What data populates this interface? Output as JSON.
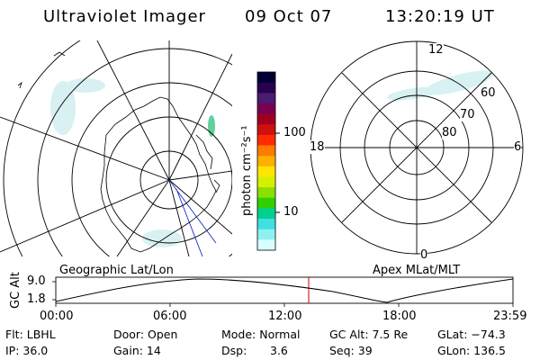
{
  "header": {
    "title": "Ultraviolet Imager",
    "date": "09 Oct 07",
    "time": "13:20:19 UT"
  },
  "colorbar": {
    "label": "photon cm⁻²s⁻¹",
    "ticks": [
      "100",
      "10"
    ],
    "colors": [
      "#000033",
      "#2a0050",
      "#4a1c72",
      "#7a0050",
      "#a00020",
      "#d01010",
      "#ff2a00",
      "#ff7a00",
      "#ffb000",
      "#ffe600",
      "#d4f000",
      "#8ae000",
      "#30d000",
      "#00d090",
      "#40e0e0",
      "#90f0f0",
      "#d8ffff"
    ]
  },
  "left_map": {
    "caption": "Geographic Lat/Lon"
  },
  "right_map": {
    "caption": "Apex MLat/MLT",
    "mlt_labels": [
      "12",
      "18",
      "6",
      "0"
    ],
    "mlat_labels": [
      "60",
      "70",
      "80"
    ]
  },
  "gc_plot": {
    "ylabel": "GC Alt",
    "ytick_top": "9.0",
    "ytick_bottom": "1.8",
    "xticks": [
      "00:00",
      "06:00",
      "12:00",
      "18:00",
      "23:59"
    ],
    "current_time_marker": "13:20:19"
  },
  "info": {
    "filter_label": "Flt: LBHL",
    "door_label": "Door: Open",
    "mode_label": "Mode: Normal",
    "gcalt_label": "GC Alt: 7.5 Re",
    "glat_label": "GLat: −74.3",
    "ip_label": "IP: 36.0",
    "gain_label": "Gain: 14",
    "dsp_label": "Dsp:",
    "dsp_value": "3.6",
    "seq_label": "Seq: 39",
    "glon_label": "GLon: 136.5"
  }
}
